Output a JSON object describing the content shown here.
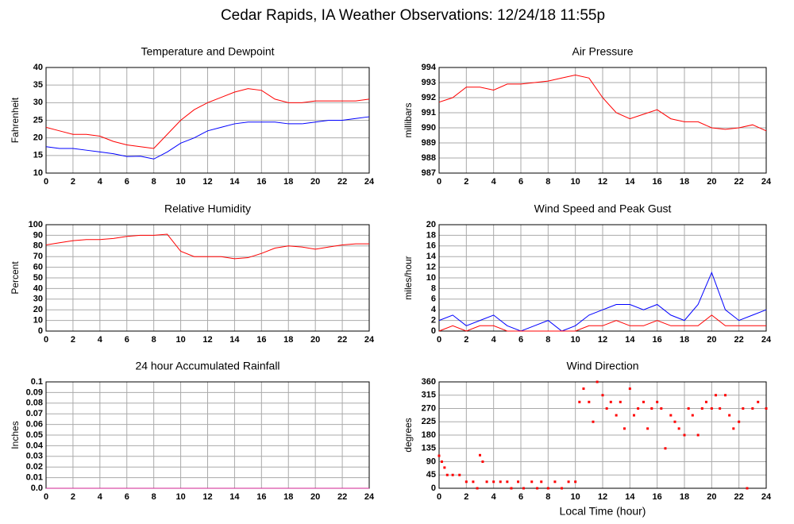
{
  "title": "Cedar Rapids, IA Weather Observations: 12/24/18 11:55p",
  "chart_data": [
    {
      "type": "line",
      "title": "Temperature and Dewpoint",
      "ylabel": "Fahrenheit",
      "x": [
        0,
        1,
        2,
        3,
        4,
        5,
        6,
        7,
        8,
        9,
        10,
        11,
        12,
        13,
        14,
        15,
        16,
        17,
        18,
        19,
        20,
        21,
        22,
        23,
        24
      ],
      "series": [
        {
          "color": "#ff0000",
          "values": [
            23,
            22,
            21,
            21,
            20.5,
            19,
            18,
            17.5,
            17,
            21,
            25,
            28,
            30,
            31.5,
            33,
            34,
            33.5,
            31,
            30,
            30,
            30.5,
            30.5,
            30.5,
            30.5,
            31
          ]
        },
        {
          "color": "#0000ff",
          "values": [
            17.5,
            17,
            17,
            16.5,
            16,
            15.5,
            14.7,
            14.8,
            14,
            16,
            18.5,
            20,
            22,
            23,
            24,
            24.5,
            24.5,
            24.5,
            24,
            24,
            24.5,
            25,
            25,
            25.5,
            26
          ]
        }
      ],
      "xlim": [
        0,
        24
      ],
      "xticks": [
        0,
        2,
        4,
        6,
        8,
        10,
        12,
        14,
        16,
        18,
        20,
        22,
        24
      ],
      "ylim": [
        10,
        40
      ],
      "yticks": [
        10,
        15,
        20,
        25,
        30,
        35,
        40
      ],
      "grid": true
    },
    {
      "type": "line",
      "title": "Air Pressure",
      "ylabel": "millibars",
      "x": [
        0,
        1,
        2,
        3,
        4,
        5,
        6,
        7,
        8,
        9,
        10,
        11,
        12,
        13,
        14,
        15,
        16,
        17,
        18,
        19,
        20,
        21,
        22,
        23,
        24
      ],
      "series": [
        {
          "color": "#ff0000",
          "values": [
            991.7,
            992,
            992.7,
            992.7,
            992.5,
            992.9,
            992.9,
            993,
            993.1,
            993.3,
            993.5,
            993.3,
            992,
            991,
            990.6,
            990.9,
            991.2,
            990.6,
            990.4,
            990.4,
            990,
            989.9,
            990,
            990.2,
            989.8
          ]
        }
      ],
      "xlim": [
        0,
        24
      ],
      "xticks": [
        0,
        2,
        4,
        6,
        8,
        10,
        12,
        14,
        16,
        18,
        20,
        22,
        24
      ],
      "ylim": [
        987,
        994
      ],
      "yticks": [
        987,
        988,
        989,
        990,
        991,
        992,
        993,
        994
      ],
      "grid": true
    },
    {
      "type": "line",
      "title": "Relative Humidity",
      "ylabel": "Percent",
      "x": [
        0,
        1,
        2,
        3,
        4,
        5,
        6,
        7,
        8,
        9,
        10,
        11,
        12,
        13,
        14,
        15,
        16,
        17,
        18,
        19,
        20,
        21,
        22,
        23,
        24
      ],
      "series": [
        {
          "color": "#ff0000",
          "values": [
            81,
            83,
            85,
            86,
            86,
            87,
            89,
            90,
            90,
            91,
            75,
            70,
            70,
            70,
            68,
            69,
            73,
            78,
            80,
            79,
            77,
            79,
            81,
            82,
            82
          ]
        }
      ],
      "xlim": [
        0,
        24
      ],
      "xticks": [
        0,
        2,
        4,
        6,
        8,
        10,
        12,
        14,
        16,
        18,
        20,
        22,
        24
      ],
      "ylim": [
        0,
        100
      ],
      "yticks": [
        0,
        10,
        20,
        30,
        40,
        50,
        60,
        70,
        80,
        90,
        100
      ],
      "grid": true
    },
    {
      "type": "line",
      "title": "Wind Speed and Peak Gust",
      "ylabel": "miles/hour",
      "x": [
        0,
        1,
        2,
        3,
        4,
        5,
        6,
        7,
        8,
        9,
        10,
        11,
        12,
        13,
        14,
        15,
        16,
        17,
        18,
        19,
        20,
        21,
        22,
        23,
        24
      ],
      "series": [
        {
          "color": "#0000ff",
          "values": [
            2,
            3,
            1,
            2,
            3,
            1,
            0,
            1,
            2,
            0,
            1,
            3,
            4,
            5,
            5,
            4,
            5,
            3,
            2,
            5,
            11,
            4,
            2,
            3,
            4
          ]
        },
        {
          "color": "#ff0000",
          "values": [
            0,
            1,
            0,
            1,
            1,
            0,
            0,
            0,
            0,
            0,
            0,
            1,
            1,
            2,
            1,
            1,
            2,
            1,
            1,
            1,
            3,
            1,
            1,
            1,
            1
          ]
        }
      ],
      "xlim": [
        0,
        24
      ],
      "xticks": [
        0,
        2,
        4,
        6,
        8,
        10,
        12,
        14,
        16,
        18,
        20,
        22,
        24
      ],
      "ylim": [
        0,
        20
      ],
      "yticks": [
        0,
        2,
        4,
        6,
        8,
        10,
        12,
        14,
        16,
        18,
        20
      ],
      "grid": true
    },
    {
      "type": "line",
      "title": "24 hour Accumulated Rainfall",
      "ylabel": "Inches",
      "x": [
        0,
        24
      ],
      "series": [
        {
          "color": "#d02090",
          "values": [
            0,
            0
          ]
        }
      ],
      "xlim": [
        0,
        24
      ],
      "xticks": [
        0,
        2,
        4,
        6,
        8,
        10,
        12,
        14,
        16,
        18,
        20,
        22,
        24
      ],
      "ylim": [
        0,
        0.1
      ],
      "yticks": [
        {
          "value": 0,
          "label": "0.0"
        },
        0.01,
        0.02,
        0.03,
        0.04,
        0.05,
        0.06,
        0.07,
        0.08,
        0.09,
        0.1
      ],
      "grid": true
    },
    {
      "type": "scatter",
      "title": "Wind Direction",
      "ylabel": "degrees",
      "xlabel": "Local Time (hour)",
      "color": "#ff0000",
      "x": [
        0,
        0.2,
        0.4,
        0.6,
        1,
        1.5,
        2,
        2.5,
        2.8,
        3,
        3.2,
        3.5,
        4,
        4.5,
        5,
        5.3,
        5.8,
        6.2,
        6.8,
        7.2,
        7.5,
        8,
        8.5,
        9,
        9.5,
        10,
        10.3,
        10.6,
        11,
        11.3,
        11.6,
        12,
        12.3,
        12.6,
        13,
        13.3,
        13.6,
        14,
        14.3,
        14.6,
        15,
        15.3,
        15.6,
        16,
        16.3,
        16.6,
        17,
        17.3,
        17.6,
        18,
        18.3,
        18.6,
        19,
        19.3,
        19.6,
        20,
        20.3,
        20.6,
        21,
        21.3,
        21.6,
        22,
        22.3,
        22.6,
        23,
        23.4,
        24
      ],
      "values": [
        110,
        90,
        70,
        45,
        45,
        45,
        22,
        22,
        0,
        112,
        90,
        22,
        22,
        22,
        22,
        0,
        22,
        0,
        22,
        0,
        22,
        0,
        22,
        0,
        22,
        22,
        292,
        337,
        292,
        225,
        360,
        315,
        270,
        292,
        247,
        292,
        202,
        337,
        247,
        270,
        292,
        202,
        270,
        292,
        270,
        135,
        247,
        225,
        202,
        180,
        270,
        247,
        180,
        270,
        292,
        270,
        315,
        270,
        315,
        247,
        202,
        225,
        270,
        0,
        270,
        292,
        270
      ],
      "xlim": [
        0,
        24
      ],
      "xticks": [
        0,
        2,
        4,
        6,
        8,
        10,
        12,
        14,
        16,
        18,
        20,
        22,
        24
      ],
      "ylim": [
        0,
        360
      ],
      "yticks": [
        0,
        45,
        90,
        135,
        180,
        225,
        270,
        315,
        360
      ],
      "grid": true
    }
  ]
}
